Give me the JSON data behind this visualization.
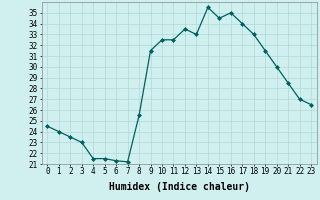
{
  "x": [
    0,
    1,
    2,
    3,
    4,
    5,
    6,
    7,
    8,
    9,
    10,
    11,
    12,
    13,
    14,
    15,
    16,
    17,
    18,
    19,
    20,
    21,
    22,
    23
  ],
  "y": [
    24.5,
    24.0,
    23.5,
    23.0,
    21.5,
    21.5,
    21.3,
    21.2,
    25.5,
    31.5,
    32.5,
    32.5,
    33.5,
    33.0,
    35.5,
    34.5,
    35.0,
    34.0,
    33.0,
    31.5,
    30.0,
    28.5,
    27.0,
    26.5
  ],
  "line_color": "#006060",
  "marker": "D",
  "marker_size": 2,
  "bg_color": "#d0f0f0",
  "grid_color": "#b0d8d8",
  "xlabel": "Humidex (Indice chaleur)",
  "ylim": [
    21,
    36
  ],
  "xlim": [
    -0.5,
    23.5
  ],
  "yticks": [
    21,
    22,
    23,
    24,
    25,
    26,
    27,
    28,
    29,
    30,
    31,
    32,
    33,
    34,
    35
  ],
  "xticks": [
    0,
    1,
    2,
    3,
    4,
    5,
    6,
    7,
    8,
    9,
    10,
    11,
    12,
    13,
    14,
    15,
    16,
    17,
    18,
    19,
    20,
    21,
    22,
    23
  ],
  "tick_fontsize": 5.5,
  "xlabel_fontsize": 7
}
